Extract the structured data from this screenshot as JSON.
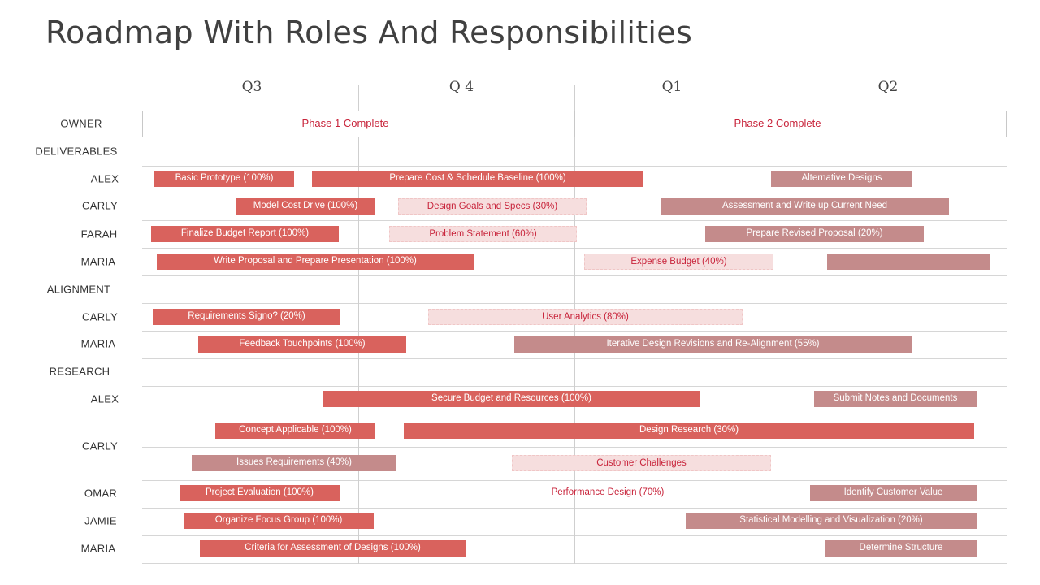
{
  "title": "Roadmap With Roles And Responsibilities",
  "quarters": [
    "Q3",
    "Q 4",
    "Q1",
    "Q2"
  ],
  "phases": [
    "Phase 1 Complete",
    "Phase 2 Complete"
  ],
  "colors": {
    "red": "#d9625d",
    "rose": "#c48b8b",
    "pink": "#f6dede",
    "accent_text": "#c8243b"
  },
  "rows": [
    {
      "label": "OWNER"
    },
    {
      "label": "DELIVERABLES"
    },
    {
      "label": "ALEX"
    },
    {
      "label": "CARLY"
    },
    {
      "label": "FARAH"
    },
    {
      "label": "MARIA"
    },
    {
      "label": "ALIGNMENT"
    },
    {
      "label": "CARLY"
    },
    {
      "label": "MARIA"
    },
    {
      "label": "RESEARCH"
    },
    {
      "label": "ALEX"
    },
    {
      "label": "CARLY"
    },
    {
      "label": "OMAR"
    },
    {
      "label": "JAMIE"
    },
    {
      "label": "MARIA"
    }
  ],
  "tasks": [
    {
      "label": "Basic Prototype (100%)",
      "style": "red"
    },
    {
      "label": "Prepare Cost & Schedule Baseline (100%)",
      "style": "red"
    },
    {
      "label": "Alternative Designs",
      "style": "rose"
    },
    {
      "label": "Model Cost Drive (100%)",
      "style": "red"
    },
    {
      "label": "Design Goals and Specs (30%)",
      "style": "pink"
    },
    {
      "label": "Assessment and Write up Current Need",
      "style": "rose"
    },
    {
      "label": "Finalize Budget Report (100%)",
      "style": "red"
    },
    {
      "label": "Problem Statement (60%)",
      "style": "pink"
    },
    {
      "label": "Prepare Revised Proposal (20%)",
      "style": "rose"
    },
    {
      "label": "Write Proposal and Prepare Presentation (100%)",
      "style": "red"
    },
    {
      "label": "Expense Budget (40%)",
      "style": "pink"
    },
    {
      "label": "",
      "style": "rose"
    },
    {
      "label": "Requirements Signo? (20%)",
      "style": "red"
    },
    {
      "label": "User Analytics (80%)",
      "style": "pink"
    },
    {
      "label": "Feedback Touchpoints (100%)",
      "style": "red"
    },
    {
      "label": "Iterative Design Revisions and Re-Alignment (55%)",
      "style": "rose"
    },
    {
      "label": "Secure Budget and Resources (100%)",
      "style": "red"
    },
    {
      "label": "Submit Notes and Documents",
      "style": "rose"
    },
    {
      "label": "Concept Applicable (100%)",
      "style": "red"
    },
    {
      "label": "Design Research (30%)",
      "style": "red"
    },
    {
      "label": "Issues Requirements (40%)",
      "style": "rose"
    },
    {
      "label": "Customer Challenges",
      "style": "pink"
    },
    {
      "label": "Project Evaluation (100%)",
      "style": "red"
    },
    {
      "label": "Performance Design (70%)",
      "style": "plain"
    },
    {
      "label": "Identify Customer Value",
      "style": "rose"
    },
    {
      "label": "Organize Focus Group (100%)",
      "style": "red"
    },
    {
      "label": "Statistical Modelling and Visualization (20%)",
      "style": "rose"
    },
    {
      "label": "Criteria for Assessment of Designs (100%)",
      "style": "red"
    },
    {
      "label": "Determine Structure",
      "style": "rose"
    }
  ]
}
